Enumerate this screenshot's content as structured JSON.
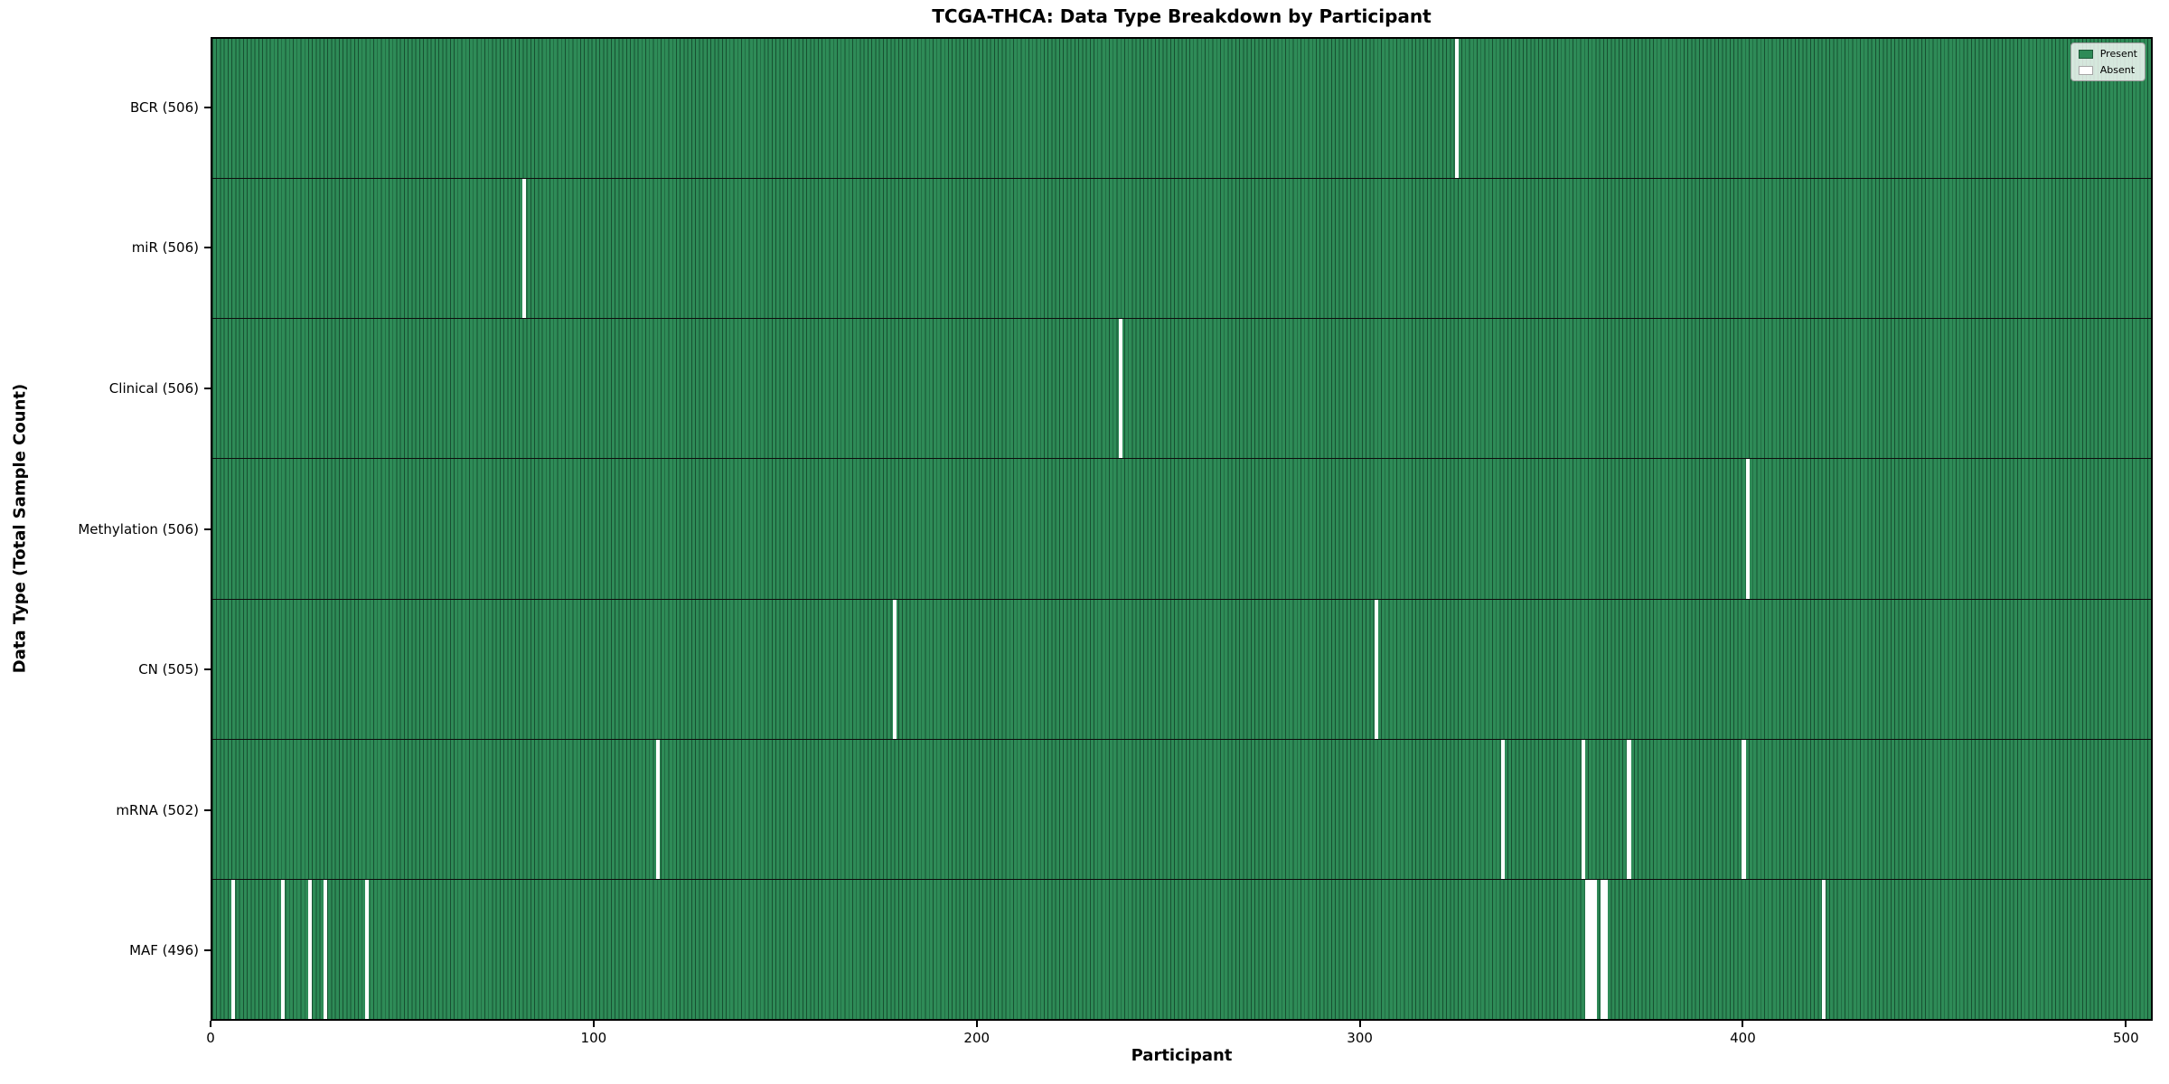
{
  "chart_data": {
    "type": "heatmap",
    "title": "TCGA-THCA: Data Type Breakdown by Participant",
    "xlabel": "Participant",
    "ylabel": "Data Type (Total Sample Count)",
    "xlim": [
      0,
      507
    ],
    "total_participants": 507,
    "x_ticks": [
      0,
      100,
      200,
      300,
      400,
      500
    ],
    "grid": false,
    "legend_position": "upper right",
    "rows": [
      {
        "name": "BCR",
        "label": "BCR (506)",
        "present_count": 506,
        "absent_participants": [
          325
        ]
      },
      {
        "name": "miR",
        "label": "miR (506)",
        "present_count": 506,
        "absent_participants": [
          81
        ]
      },
      {
        "name": "Clinical",
        "label": "Clinical (506)",
        "present_count": 506,
        "absent_participants": [
          237
        ]
      },
      {
        "name": "Methylation",
        "label": "Methylation (506)",
        "present_count": 506,
        "absent_participants": [
          401
        ]
      },
      {
        "name": "CN",
        "label": "CN (505)",
        "present_count": 505,
        "absent_participants": [
          178,
          304
        ]
      },
      {
        "name": "mRNA",
        "label": "mRNA (502)",
        "present_count": 502,
        "absent_participants": [
          116,
          337,
          358,
          370,
          400
        ]
      },
      {
        "name": "MAF",
        "label": "MAF (496)",
        "present_count": 496,
        "absent_participants": [
          5,
          18,
          25,
          29,
          40,
          359,
          360,
          361,
          363,
          364,
          421
        ]
      }
    ],
    "legend": {
      "entries": [
        {
          "label": "Present",
          "color": "#2e8b57"
        },
        {
          "label": "Absent",
          "color": "#ffffff"
        }
      ]
    },
    "colors": {
      "present": "#2e8b57",
      "absent": "#ffffff",
      "bar_edge": "rgba(0,22,11,0.5)",
      "frame": "#000000"
    }
  }
}
